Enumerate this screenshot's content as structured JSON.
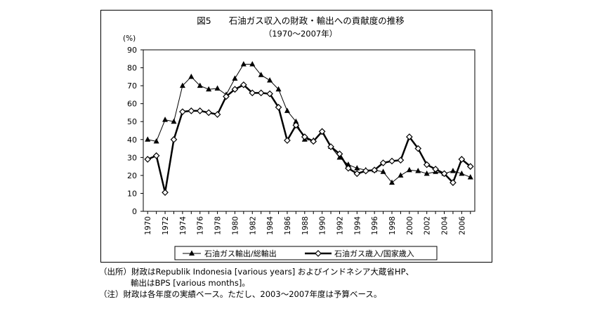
{
  "chart_data": {
    "type": "line",
    "title": "図5　　石油ガス収入の財政・輸出への貢献度の推移",
    "subtitle": "（1970～2007年）",
    "ylabel": "(%)",
    "ylim": [
      0,
      90
    ],
    "yticks": [
      0,
      10,
      20,
      30,
      40,
      50,
      60,
      70,
      80,
      90
    ],
    "x": [
      1970,
      1971,
      1972,
      1973,
      1974,
      1975,
      1976,
      1977,
      1978,
      1979,
      1980,
      1981,
      1982,
      1983,
      1984,
      1985,
      1986,
      1987,
      1988,
      1989,
      1990,
      1991,
      1992,
      1993,
      1994,
      1995,
      1996,
      1997,
      1998,
      1999,
      2000,
      2001,
      2002,
      2003,
      2004,
      2005,
      2006,
      2007
    ],
    "xticks": [
      "1970",
      "1972",
      "1974",
      "1976",
      "1978",
      "1980",
      "1982",
      "1984",
      "1986",
      "1988",
      "1990",
      "1992",
      "1994",
      "1996",
      "1998",
      "2000",
      "2002",
      "2004",
      "2006"
    ],
    "grid": false,
    "legend_position": "bottom",
    "series": [
      {
        "name": "石油ガス輸出/総輸出",
        "marker": "triangle",
        "values": [
          40,
          39,
          51,
          50,
          70,
          75,
          70,
          68,
          68.5,
          65,
          74,
          82,
          82,
          76,
          73,
          68,
          56,
          50,
          40,
          39.5,
          44,
          36,
          30,
          26,
          24,
          23,
          23,
          22,
          16,
          20,
          23,
          22.5,
          21,
          22,
          21,
          22.5,
          21,
          19
        ]
      },
      {
        "name": "石油ガス歳入/国家歳入",
        "marker": "diamond",
        "values": [
          29,
          31,
          10.5,
          40,
          55.5,
          56,
          56,
          55,
          54,
          64,
          68,
          70.5,
          66,
          66,
          65.5,
          58,
          39.5,
          48,
          41.5,
          39,
          44.5,
          36,
          32,
          24,
          21,
          22.5,
          23,
          27,
          28,
          28.5,
          41.5,
          35,
          26,
          23.5,
          21,
          16,
          29,
          25
        ]
      }
    ]
  },
  "notes": {
    "line1": "（出所）財政はRepublik Indonesia [various years] およびインドネシア大蔵省HP、",
    "line2": "輸出はBPS [various months]。",
    "line3": "（注）財政は各年度の実績ベース。ただし、2003～2007年度は予算ベース。"
  }
}
